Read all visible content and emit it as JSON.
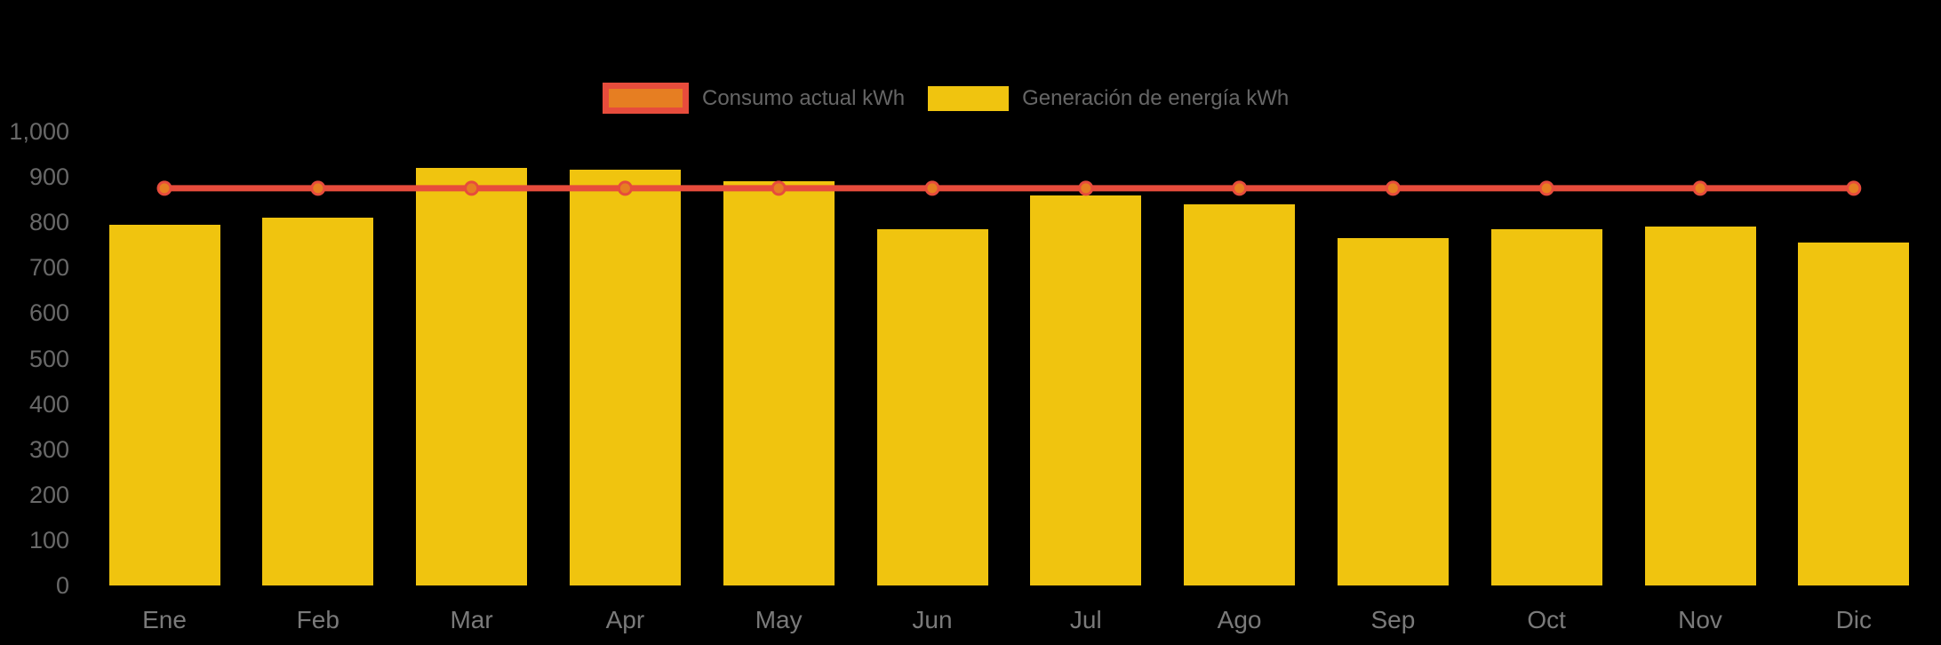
{
  "background_color": "#000000",
  "axis": {
    "tick_text_color": "#696969",
    "month_text_color": "#7A7A7A"
  },
  "legend": {
    "text_color": "#666666",
    "position": "top"
  },
  "chart_data": {
    "type": "bar",
    "title": "",
    "xlabel": "",
    "ylabel": "",
    "categories": [
      "Ene",
      "Feb",
      "Mar",
      "Apr",
      "May",
      "Jun",
      "Jul",
      "Ago",
      "Sep",
      "Oct",
      "Nov",
      "Dic"
    ],
    "series": [
      {
        "name": "Consumo actual kWh",
        "type": "line",
        "color": "#E74C3C",
        "marker_color": "#E67E22",
        "values": [
          875,
          875,
          875,
          875,
          875,
          875,
          875,
          875,
          875,
          875,
          875,
          875
        ]
      },
      {
        "name": "Generación de energía kWh",
        "type": "bar",
        "color": "#F0C40F",
        "values": [
          795,
          810,
          920,
          915,
          890,
          785,
          860,
          840,
          765,
          785,
          790,
          755
        ]
      }
    ],
    "ylim": [
      0,
      1000
    ],
    "yticks": [
      0,
      100,
      200,
      300,
      400,
      500,
      600,
      700,
      800,
      900,
      1000
    ],
    "ytick_labels": [
      "0",
      "100",
      "200",
      "300",
      "400",
      "500",
      "600",
      "700",
      "800",
      "900",
      "1,000"
    ],
    "grid": false,
    "legend_position": "top"
  }
}
